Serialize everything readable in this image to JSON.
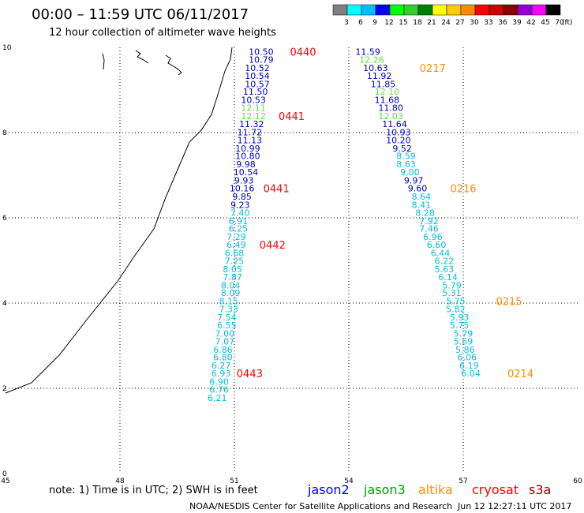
{
  "chart_data": {
    "type": "scatter",
    "title": "00:00 – 11:59 UTC 06/11/2017",
    "subtitle": "12 hour collection of altimeter wave heights",
    "xlim": [
      45,
      60
    ],
    "ylim": [
      0,
      10
    ],
    "x_ticks": [
      "45",
      "48",
      "51",
      "54",
      "57",
      "60"
    ],
    "y_ticks": [
      "0",
      "2",
      "4",
      "6",
      "8",
      "10"
    ],
    "grid": true,
    "color_legend": {
      "labels": [
        "3",
        "6",
        "9",
        "12",
        "15",
        "18",
        "21",
        "24",
        "27",
        "30",
        "33",
        "36",
        "39",
        "42",
        "45",
        "70"
      ],
      "unit": "(ft)",
      "colors": [
        "#808080",
        "#00ffff",
        "#00bfff",
        "#0000ff",
        "#00ff00",
        "#33cc33",
        "#008000",
        "#ffff00",
        "#ffcc00",
        "#ff8c00",
        "#ff0000",
        "#cc0000",
        "#8b0000",
        "#9400d3",
        "#ff00ff",
        "#000000"
      ]
    },
    "series": [
      {
        "name": "jason2",
        "points": [
          {
            "x": 51.7,
            "y": 9.9,
            "v": "10.50",
            "color": "#0000c0"
          },
          {
            "x": 51.7,
            "y": 9.71,
            "v": "10.79",
            "color": "#0000c0"
          },
          {
            "x": 51.6,
            "y": 9.52,
            "v": "10.52",
            "color": "#0000c0"
          },
          {
            "x": 51.6,
            "y": 9.33,
            "v": "10.54",
            "color": "#0000c0"
          },
          {
            "x": 51.6,
            "y": 9.14,
            "v": "10.57",
            "color": "#0000c0"
          },
          {
            "x": 51.55,
            "y": 8.96,
            "v": "11.50",
            "color": "#0000c0"
          },
          {
            "x": 51.5,
            "y": 8.77,
            "v": "10.53",
            "color": "#0000c0"
          },
          {
            "x": 51.5,
            "y": 8.58,
            "v": "12.11",
            "color": "#66dd44"
          },
          {
            "x": 51.5,
            "y": 8.39,
            "v": "12.12",
            "color": "#66dd44"
          },
          {
            "x": 51.45,
            "y": 8.2,
            "v": "11.32",
            "color": "#0000c0"
          },
          {
            "x": 51.4,
            "y": 8.01,
            "v": "11.72",
            "color": "#0000c0"
          },
          {
            "x": 51.4,
            "y": 7.82,
            "v": "11.13",
            "color": "#0000c0"
          },
          {
            "x": 51.35,
            "y": 7.63,
            "v": "10.99",
            "color": "#0000c0"
          },
          {
            "x": 51.35,
            "y": 7.45,
            "v": "10.80",
            "color": "#0000c0"
          },
          {
            "x": 51.3,
            "y": 7.26,
            "v": "9.98",
            "color": "#0000c0"
          },
          {
            "x": 51.3,
            "y": 7.07,
            "v": "10.54",
            "color": "#0000c0"
          },
          {
            "x": 51.25,
            "y": 6.88,
            "v": "9.93",
            "color": "#0000c0"
          },
          {
            "x": 51.2,
            "y": 6.69,
            "v": "10.16",
            "color": "#0000c0"
          },
          {
            "x": 51.2,
            "y": 6.5,
            "v": "9.85",
            "color": "#0000c0"
          },
          {
            "x": 51.15,
            "y": 6.31,
            "v": "9.23",
            "color": "#0000c0"
          },
          {
            "x": 51.15,
            "y": 6.12,
            "v": "7.40",
            "color": "#00c0e0"
          },
          {
            "x": 51.1,
            "y": 5.93,
            "v": "6.91",
            "color": "#00c0e0"
          },
          {
            "x": 51.1,
            "y": 5.75,
            "v": "6.25",
            "color": "#00c0e0"
          },
          {
            "x": 51.05,
            "y": 5.56,
            "v": "7.29",
            "color": "#00c0e0"
          },
          {
            "x": 51.05,
            "y": 5.37,
            "v": "6.49",
            "color": "#00c0e0"
          },
          {
            "x": 51.0,
            "y": 5.18,
            "v": "6.68",
            "color": "#00c0e0"
          },
          {
            "x": 51.0,
            "y": 4.99,
            "v": "7.25",
            "color": "#00c0e0"
          },
          {
            "x": 50.95,
            "y": 4.8,
            "v": "8.05",
            "color": "#00c0e0"
          },
          {
            "x": 50.95,
            "y": 4.61,
            "v": "7.87",
            "color": "#00c0e0"
          },
          {
            "x": 50.9,
            "y": 4.42,
            "v": "8.04",
            "color": "#00c0e0"
          },
          {
            "x": 50.9,
            "y": 4.24,
            "v": "8.09",
            "color": "#00c0e0"
          },
          {
            "x": 50.85,
            "y": 4.05,
            "v": "8.15",
            "color": "#00c0e0"
          },
          {
            "x": 50.85,
            "y": 3.86,
            "v": "7.33",
            "color": "#00c0e0"
          },
          {
            "x": 50.8,
            "y": 3.67,
            "v": "7.54",
            "color": "#00c0e0"
          },
          {
            "x": 50.8,
            "y": 3.48,
            "v": "6.55",
            "color": "#00c0e0"
          },
          {
            "x": 50.75,
            "y": 3.29,
            "v": "7.00",
            "color": "#00c0e0"
          },
          {
            "x": 50.75,
            "y": 3.1,
            "v": "7.07",
            "color": "#00c0e0"
          },
          {
            "x": 50.7,
            "y": 2.91,
            "v": "6.86",
            "color": "#00c0e0"
          },
          {
            "x": 50.7,
            "y": 2.73,
            "v": "6.80",
            "color": "#00c0e0"
          },
          {
            "x": 50.65,
            "y": 2.54,
            "v": "6.27",
            "color": "#00c0e0"
          },
          {
            "x": 50.65,
            "y": 2.35,
            "v": "6.93",
            "color": "#00c0e0"
          },
          {
            "x": 50.6,
            "y": 2.16,
            "v": "6.90",
            "color": "#00c0e0"
          },
          {
            "x": 50.6,
            "y": 1.97,
            "v": "6.76",
            "color": "#00c0e0"
          },
          {
            "x": 50.55,
            "y": 1.78,
            "v": "6.21",
            "color": "#00c0e0"
          }
        ],
        "passes": [
          {
            "label": "0440",
            "x": 52.8,
            "y": 9.9
          },
          {
            "label": "0441",
            "x": 52.5,
            "y": 8.39
          },
          {
            "label": "0441",
            "x": 52.1,
            "y": 6.69
          },
          {
            "label": "0442",
            "x": 52.0,
            "y": 5.37
          },
          {
            "label": "0443",
            "x": 51.4,
            "y": 2.35
          }
        ]
      },
      {
        "name": "altika",
        "points": [
          {
            "x": 54.5,
            "y": 9.9,
            "v": "11.59",
            "color": "#0000c0"
          },
          {
            "x": 54.6,
            "y": 9.71,
            "v": "12.26",
            "color": "#66dd44"
          },
          {
            "x": 54.7,
            "y": 9.52,
            "v": "10.63",
            "color": "#0000c0"
          },
          {
            "x": 54.8,
            "y": 9.33,
            "v": "11.92",
            "color": "#0000c0"
          },
          {
            "x": 54.9,
            "y": 9.14,
            "v": "11.85",
            "color": "#0000c0"
          },
          {
            "x": 55.0,
            "y": 8.96,
            "v": "12.10",
            "color": "#66dd44"
          },
          {
            "x": 55.0,
            "y": 8.77,
            "v": "11.68",
            "color": "#0000c0"
          },
          {
            "x": 55.1,
            "y": 8.58,
            "v": "11.80",
            "color": "#0000c0"
          },
          {
            "x": 55.1,
            "y": 8.39,
            "v": "12.03",
            "color": "#66dd44"
          },
          {
            "x": 55.2,
            "y": 8.2,
            "v": "11.64",
            "color": "#0000c0"
          },
          {
            "x": 55.3,
            "y": 8.01,
            "v": "10.93",
            "color": "#0000c0"
          },
          {
            "x": 55.3,
            "y": 7.82,
            "v": "10.20",
            "color": "#0000c0"
          },
          {
            "x": 55.4,
            "y": 7.63,
            "v": "9.52",
            "color": "#0000c0"
          },
          {
            "x": 55.5,
            "y": 7.45,
            "v": "8.59",
            "color": "#00c0e0"
          },
          {
            "x": 55.5,
            "y": 7.26,
            "v": "8.63",
            "color": "#00c0e0"
          },
          {
            "x": 55.6,
            "y": 7.07,
            "v": "9.00",
            "color": "#00c0e0"
          },
          {
            "x": 55.7,
            "y": 6.88,
            "v": "9.97",
            "color": "#0000c0"
          },
          {
            "x": 55.8,
            "y": 6.69,
            "v": "9.60",
            "color": "#0000c0"
          },
          {
            "x": 55.9,
            "y": 6.5,
            "v": "8.64",
            "color": "#00c0e0"
          },
          {
            "x": 55.9,
            "y": 6.31,
            "v": "8.41",
            "color": "#00c0e0"
          },
          {
            "x": 56.0,
            "y": 6.12,
            "v": "8.28",
            "color": "#00c0e0"
          },
          {
            "x": 56.1,
            "y": 5.93,
            "v": "7.92",
            "color": "#00c0e0"
          },
          {
            "x": 56.1,
            "y": 5.75,
            "v": "7.46",
            "color": "#00c0e0"
          },
          {
            "x": 56.2,
            "y": 5.56,
            "v": "6.96",
            "color": "#00c0e0"
          },
          {
            "x": 56.3,
            "y": 5.37,
            "v": "6.60",
            "color": "#00c0e0"
          },
          {
            "x": 56.4,
            "y": 5.18,
            "v": "6.44",
            "color": "#00c0e0"
          },
          {
            "x": 56.5,
            "y": 4.99,
            "v": "6.22",
            "color": "#00c0e0"
          },
          {
            "x": 56.5,
            "y": 4.8,
            "v": "5.63",
            "color": "#00c0e0"
          },
          {
            "x": 56.6,
            "y": 4.61,
            "v": "6.14",
            "color": "#00c0e0"
          },
          {
            "x": 56.7,
            "y": 4.42,
            "v": "5.79",
            "color": "#00c0e0"
          },
          {
            "x": 56.7,
            "y": 4.24,
            "v": "5.31",
            "color": "#00c0e0"
          },
          {
            "x": 56.8,
            "y": 4.05,
            "v": "5.75",
            "color": "#00c0e0"
          },
          {
            "x": 56.8,
            "y": 3.86,
            "v": "5.82",
            "color": "#00c0e0"
          },
          {
            "x": 56.9,
            "y": 3.67,
            "v": "5.93",
            "color": "#00c0e0"
          },
          {
            "x": 56.9,
            "y": 3.48,
            "v": "5.75",
            "color": "#00c0e0"
          },
          {
            "x": 57.0,
            "y": 3.29,
            "v": "5.79",
            "color": "#00c0e0"
          },
          {
            "x": 57.0,
            "y": 3.1,
            "v": "5.69",
            "color": "#00c0e0"
          },
          {
            "x": 57.05,
            "y": 2.91,
            "v": "5.86",
            "color": "#00c0e0"
          },
          {
            "x": 57.1,
            "y": 2.73,
            "v": "6.06",
            "color": "#00c0e0"
          },
          {
            "x": 57.15,
            "y": 2.54,
            "v": "6.19",
            "color": "#00c0e0"
          },
          {
            "x": 57.2,
            "y": 2.35,
            "v": "6.04",
            "color": "#00c0e0"
          }
        ],
        "passes": [
          {
            "label": "0217",
            "x": 56.2,
            "y": 9.52
          },
          {
            "label": "0216",
            "x": 57.0,
            "y": 6.69
          },
          {
            "label": "0215",
            "x": 58.2,
            "y": 4.05
          },
          {
            "label": "0214",
            "x": 58.5,
            "y": 2.35
          }
        ]
      }
    ],
    "note": "note:  1) Time is in UTC;  2) SWH is in feet",
    "satellites": [
      {
        "name": "jason2",
        "color": "#0000ff"
      },
      {
        "name": "jason3",
        "color": "#00a000"
      },
      {
        "name": "altika",
        "color": "#ff8c00"
      },
      {
        "name": "cryosat",
        "color": "#ff0000"
      },
      {
        "name": "s3a",
        "color": "#8b0000"
      }
    ],
    "credit": "NOAA/NESDIS Center for Satellite Applications and Research",
    "timestamp": "Jun 12 12:27:11 UTC 2017",
    "colors": {
      "pass_jason2": "#ff0000",
      "pass_altika": "#ff8c00",
      "grid": "#000000",
      "coast": "#000000"
    }
  }
}
